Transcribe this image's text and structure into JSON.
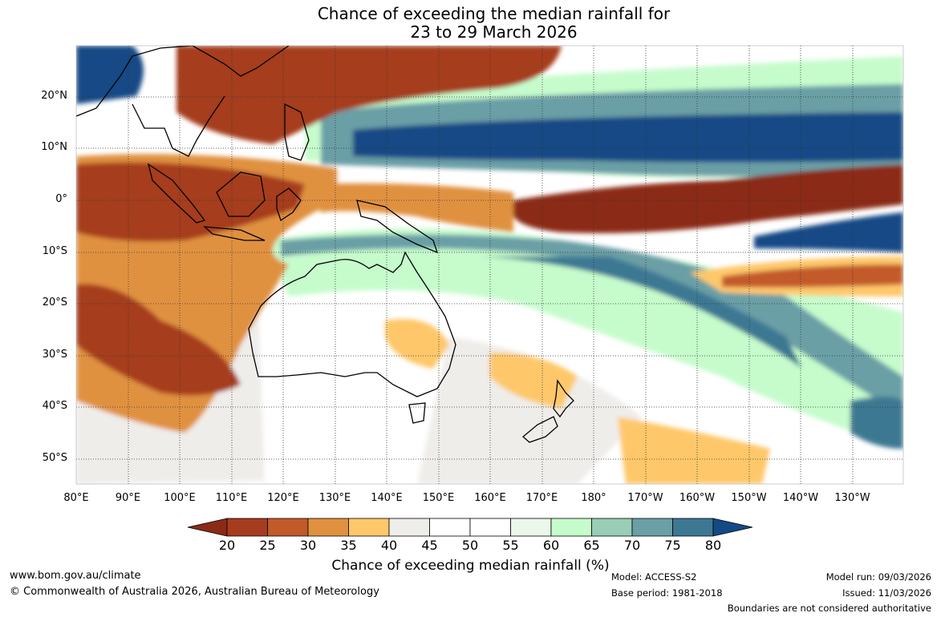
{
  "title": {
    "line1": "Chance of exceeding the median rainfall for",
    "line2": "23 to 29 March 2026"
  },
  "map": {
    "lat_labels": [
      "20°N",
      "10°N",
      "0°",
      "10°S",
      "20°S",
      "30°S",
      "40°S",
      "50°S"
    ],
    "lon_labels": [
      "80°E",
      "90°E",
      "100°E",
      "110°E",
      "120°E",
      "130°E",
      "140°E",
      "150°E",
      "160°E",
      "170°E",
      "180°",
      "170°W",
      "160°W",
      "150°W",
      "140°W",
      "130°W"
    ],
    "grid": "dotted"
  },
  "colorbar": {
    "ticks": [
      "20",
      "25",
      "30",
      "35",
      "40",
      "45",
      "50",
      "55",
      "60",
      "65",
      "70",
      "75",
      "80"
    ],
    "colors": [
      "#8b2b17",
      "#a63c1e",
      "#c25a2a",
      "#e0913f",
      "#fec86a",
      "#efedea",
      "#ffffff",
      "#ffffff",
      "#eaf7ea",
      "#c6fccc",
      "#99cdb6",
      "#6a9fa6",
      "#3d7893",
      "#134a85"
    ],
    "label": "Chance of exceeding median rainfall (%)"
  },
  "footer": {
    "website": "www.bom.gov.au/climate",
    "copyright": "© Commonwealth of Australia 2026, Australian Bureau of Meteorology",
    "model": "Model: ACCESS-S2",
    "base_period": "Base period: 1981-2018",
    "model_run": "Model run: 09/03/2026",
    "issued": "Issued: 11/03/2026",
    "boundaries": "Boundaries are not considered authoritative"
  }
}
